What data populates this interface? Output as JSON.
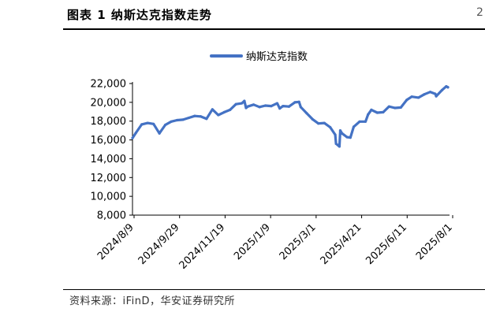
{
  "figure": {
    "title": "图表 1 纳斯达克指数走势",
    "page_marker": "2",
    "source": "资料来源：iFinD，华安证券研究所"
  },
  "colors": {
    "series": "#4472C4",
    "axis": "#000000"
  },
  "chart_data": {
    "type": "line",
    "title": "",
    "xlabel": "",
    "ylabel": "",
    "ylim": [
      8000,
      22000
    ],
    "y_ticks": [
      8000,
      10000,
      12000,
      14000,
      16000,
      18000,
      20000,
      22000
    ],
    "y_tick_labels": [
      "8,000",
      "10,000",
      "12,000",
      "14,000",
      "16,000",
      "18,000",
      "20,000",
      "22,000"
    ],
    "x_tick_labels": [
      "2024/8/9",
      "2024/9/29",
      "2024/11/19",
      "2025/1/9",
      "2025/3/1",
      "2025/4/21",
      "2025/6/11",
      "2025/8/1"
    ],
    "legend": {
      "position": "top-center"
    },
    "series": [
      {
        "name": "纳斯达克指数",
        "x": [
          "2024-08-05",
          "2024-08-09",
          "2024-08-16",
          "2024-08-23",
          "2024-08-30",
          "2024-09-06",
          "2024-09-13",
          "2024-09-20",
          "2024-09-27",
          "2024-10-04",
          "2024-10-11",
          "2024-10-18",
          "2024-10-25",
          "2024-11-01",
          "2024-11-08",
          "2024-11-15",
          "2024-11-22",
          "2024-11-29",
          "2024-12-06",
          "2024-12-13",
          "2024-12-16",
          "2024-12-18",
          "2024-12-20",
          "2024-12-27",
          "2025-01-03",
          "2025-01-10",
          "2025-01-17",
          "2025-01-24",
          "2025-01-27",
          "2025-01-31",
          "2025-02-07",
          "2025-02-14",
          "2025-02-19",
          "2025-02-21",
          "2025-02-28",
          "2025-03-07",
          "2025-03-14",
          "2025-03-21",
          "2025-03-28",
          "2025-04-03",
          "2025-04-04",
          "2025-04-08",
          "2025-04-09",
          "2025-04-11",
          "2025-04-17",
          "2025-04-21",
          "2025-04-25",
          "2025-05-02",
          "2025-05-09",
          "2025-05-12",
          "2025-05-16",
          "2025-05-23",
          "2025-05-30",
          "2025-06-06",
          "2025-06-13",
          "2025-06-20",
          "2025-06-27",
          "2025-07-03",
          "2025-07-11",
          "2025-07-18",
          "2025-07-25",
          "2025-07-31",
          "2025-08-01",
          "2025-08-08",
          "2025-08-13",
          "2025-08-15"
        ],
        "values": [
          16200,
          16750,
          17650,
          17800,
          17700,
          16700,
          17600,
          17950,
          18100,
          18150,
          18350,
          18550,
          18500,
          18250,
          19250,
          18650,
          18950,
          19200,
          19800,
          19900,
          20150,
          19400,
          19550,
          19750,
          19500,
          19650,
          19600,
          19900,
          19350,
          19600,
          19550,
          20000,
          20050,
          19500,
          18850,
          18200,
          17750,
          17800,
          17350,
          16550,
          15600,
          15300,
          17000,
          16700,
          16300,
          16250,
          17400,
          17950,
          17950,
          18700,
          19200,
          18900,
          18950,
          19550,
          19400,
          19450,
          20250,
          20600,
          20500,
          20850,
          21100,
          20900,
          20650,
          21300,
          21700,
          21600
        ]
      }
    ]
  }
}
